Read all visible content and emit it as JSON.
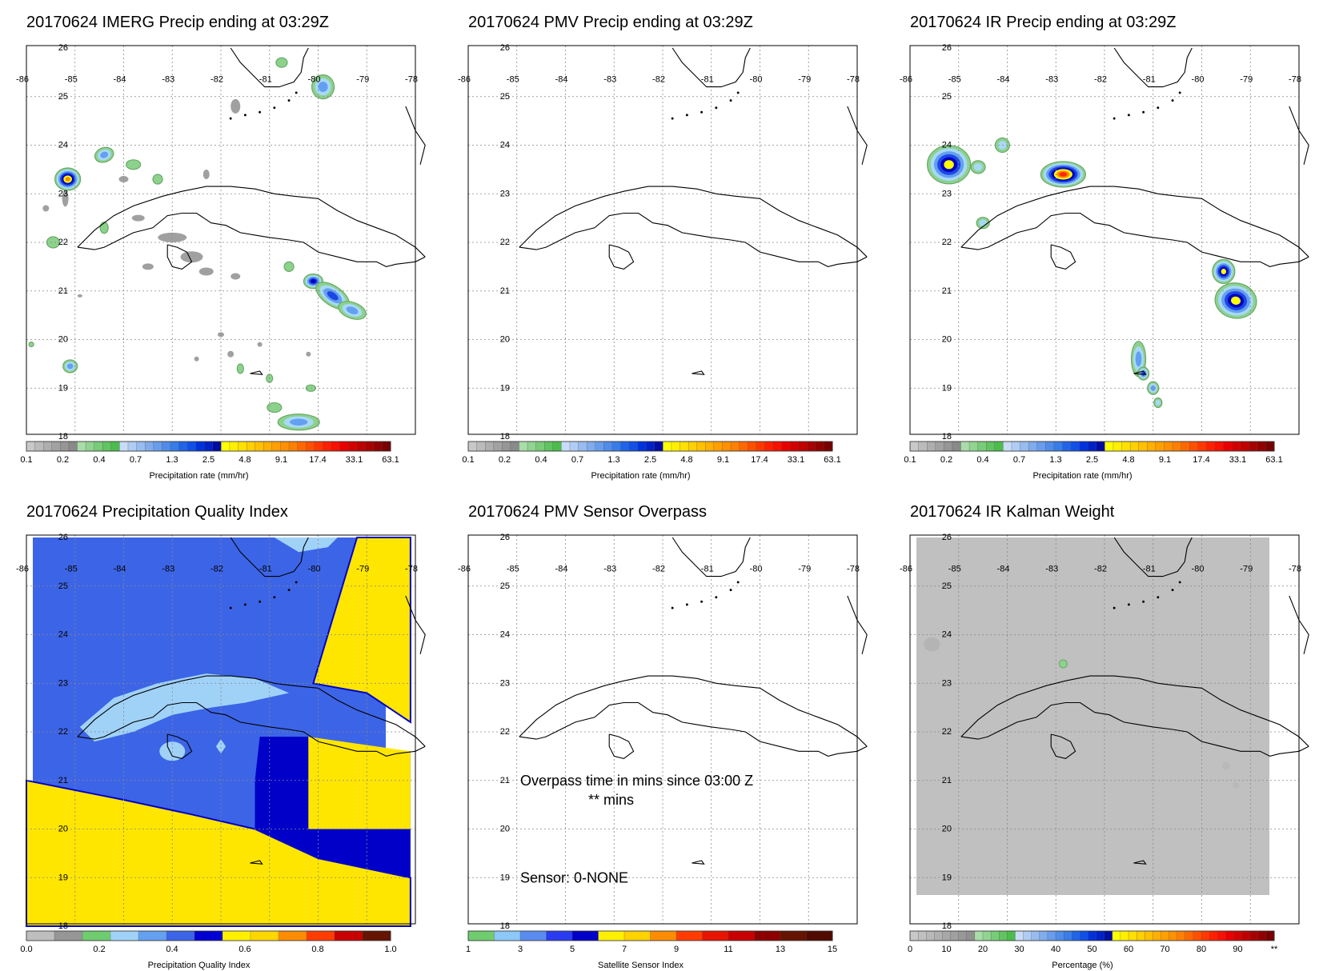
{
  "panels": [
    {
      "title": "20170624 IMERG Precip ending at 03:29Z",
      "kind": "imerg",
      "colorbar": "precip"
    },
    {
      "title": "20170624 PMV Precip ending at 03:29Z",
      "kind": "empty",
      "colorbar": "precip"
    },
    {
      "title": "20170624 IR Precip ending at 03:29Z",
      "kind": "ir",
      "colorbar": "precip"
    },
    {
      "title": "20170624 Precipitation Quality Index",
      "kind": "quality",
      "colorbar": "quality"
    },
    {
      "title": "20170624 PMV Sensor Overpass",
      "kind": "overpass",
      "colorbar": "sensor"
    },
    {
      "title": "20170624 IR Kalman Weight",
      "kind": "kalman",
      "colorbar": "percent"
    }
  ],
  "map": {
    "lon_ticks": [
      "-86",
      "-85",
      "-84",
      "-83",
      "-82",
      "-81",
      "-80",
      "-79",
      "-78"
    ],
    "lat_ticks": [
      "26",
      "25",
      "24",
      "23",
      "22",
      "21",
      "20",
      "19",
      "18"
    ],
    "lon_range": [
      -86,
      -78
    ],
    "lat_range": [
      18,
      26
    ]
  },
  "overpass_annotation": {
    "line1": "Overpass time in mins since 03:00 Z",
    "line2": "** mins",
    "sensor": "Sensor:   0-NONE"
  },
  "colorbars": {
    "precip": {
      "label": "Precipitation rate (mm/hr)",
      "tick_labels": [
        "0.1",
        "0.2",
        "0.4",
        "0.7",
        "1.3",
        "2.5",
        "4.8",
        "9.1",
        "17.4",
        "33.1",
        "63.1"
      ],
      "colors": [
        "#c8c8c8",
        "#bbbbbb",
        "#aeaeae",
        "#a2a2a2",
        "#969696",
        "#8a8a8a",
        "#a8dca8",
        "#90d490",
        "#78cc78",
        "#60c460",
        "#4cbc4c",
        "#c8dcf8",
        "#b0ccf4",
        "#98bcf0",
        "#80acec",
        "#689cec",
        "#508ce8",
        "#387ce8",
        "#2064e8",
        "#1050e8",
        "#0032dc",
        "#0020c8",
        "#000ca0",
        "#ffff00",
        "#fff000",
        "#ffe000",
        "#ffd000",
        "#ffc000",
        "#ffb000",
        "#ffa000",
        "#ff9000",
        "#ff8000",
        "#ff6800",
        "#ff5000",
        "#ff3800",
        "#ff2000",
        "#f81000",
        "#e80000",
        "#d40000",
        "#c00000",
        "#a80000",
        "#900000",
        "#780000"
      ]
    },
    "quality": {
      "label": "Precipitation Quality Index",
      "tick_labels": [
        "0.0",
        "0.2",
        "0.4",
        "0.6",
        "0.8",
        "1.0"
      ],
      "colors": [
        "#bebebe",
        "#969696",
        "#6fcc6f",
        "#a0d2f8",
        "#64a0f0",
        "#3c64e6",
        "#0000d2",
        "#fff000",
        "#ffd700",
        "#ff8c00",
        "#ff3c00",
        "#c80000",
        "#641400"
      ]
    },
    "sensor": {
      "label": "Satellite Sensor Index",
      "tick_labels": [
        "1",
        "3",
        "5",
        "7",
        "9",
        "11",
        "13",
        "15"
      ],
      "colors": [
        "#6fcc6f",
        "#8cc8f8",
        "#5a8cf0",
        "#2a3cf0",
        "#0000c8",
        "#fff000",
        "#ffd200",
        "#ff8c00",
        "#ff3c00",
        "#e61400",
        "#c80000",
        "#8c0000",
        "#641400",
        "#500a00"
      ]
    },
    "percent": {
      "label": "Percentage (%)",
      "tick_labels": [
        "0",
        "10",
        "20",
        "30",
        "40",
        "50",
        "60",
        "70",
        "80",
        "90",
        "**"
      ],
      "colors": [
        "#c8c8c8",
        "#c0c0c0",
        "#b8b8b8",
        "#b0b0b0",
        "#a8a8a8",
        "#a0a0a0",
        "#989898",
        "#909090",
        "#a8dca8",
        "#90d490",
        "#78cc78",
        "#60c460",
        "#4cbc4c",
        "#c8dcf8",
        "#b0ccf4",
        "#98bcf0",
        "#80acec",
        "#689cec",
        "#508ce8",
        "#387ce8",
        "#2064e8",
        "#1050e8",
        "#0032dc",
        "#0020c8",
        "#000ca0",
        "#ffff00",
        "#fff000",
        "#ffe000",
        "#ffd000",
        "#ffc000",
        "#ffb000",
        "#ffa000",
        "#ff9000",
        "#ff8000",
        "#ff6800",
        "#ff5000",
        "#ff3800",
        "#ff2000",
        "#f81000",
        "#e80000",
        "#d40000",
        "#c00000",
        "#a80000",
        "#900000",
        "#780000"
      ]
    }
  },
  "chart_data": [
    {
      "type": "heatmap",
      "title": "20170624 IMERG Precip ending at 03:29Z",
      "variable": "Precipitation rate (mm/hr)",
      "x_range": [
        -86,
        -78
      ],
      "y_range": [
        18,
        26
      ],
      "levels": [
        0.1,
        0.2,
        0.4,
        0.7,
        1.3,
        2.5,
        4.8,
        9.1,
        17.4,
        33.1,
        63.1
      ],
      "features": [
        {
          "lon": -85.1,
          "lat": 23.3,
          "peak_mm_hr": 9.1
        },
        {
          "lon": -80.0,
          "lat": 21.3,
          "peak_mm_hr": 2.5
        },
        {
          "lon": -79.6,
          "lat": 20.7,
          "peak_mm_hr": 1.3
        },
        {
          "lon": -84.4,
          "lat": 23.8,
          "peak_mm_hr": 0.7
        },
        {
          "lon": -79.9,
          "lat": 25.2,
          "peak_mm_hr": 0.7
        },
        {
          "lon": -80.4,
          "lat": 18.2,
          "peak_mm_hr": 0.4
        },
        {
          "lon": -85.2,
          "lat": 19.4,
          "peak_mm_hr": 0.7
        },
        {
          "lon": -83.5,
          "lat": 21.7,
          "peak_mm_hr": 0.2
        }
      ]
    },
    {
      "type": "heatmap",
      "title": "20170624 PMV Precip ending at 03:29Z",
      "variable": "Precipitation rate (mm/hr)",
      "x_range": [
        -86,
        -78
      ],
      "y_range": [
        18,
        26
      ],
      "features": []
    },
    {
      "type": "heatmap",
      "title": "20170624 IR Precip ending at 03:29Z",
      "variable": "Precipitation rate (mm/hr)",
      "x_range": [
        -86,
        -78
      ],
      "y_range": [
        18,
        26
      ],
      "levels": [
        0.1,
        0.2,
        0.4,
        0.7,
        1.3,
        2.5,
        4.8,
        9.1,
        17.4,
        33.1,
        63.1
      ],
      "features": [
        {
          "lon": -85.2,
          "lat": 23.6,
          "peak_mm_hr": 4.8
        },
        {
          "lon": -82.8,
          "lat": 23.4,
          "peak_mm_hr": 17.4
        },
        {
          "lon": -79.2,
          "lat": 20.8,
          "peak_mm_hr": 4.8
        },
        {
          "lon": -79.6,
          "lat": 21.4,
          "peak_mm_hr": 4.8
        },
        {
          "lon": -84.4,
          "lat": 23.9,
          "peak_mm_hr": 0.7
        },
        {
          "lon": -84.6,
          "lat": 23.5,
          "peak_mm_hr": 0.7
        },
        {
          "lon": -84.5,
          "lat": 22.4,
          "peak_mm_hr": 0.4
        },
        {
          "lon": -81.3,
          "lat": 19.5,
          "peak_mm_hr": 1.3
        }
      ]
    },
    {
      "type": "heatmap",
      "title": "20170624 Precipitation Quality Index",
      "variable": "Precipitation Quality Index",
      "x_range": [
        -86,
        -78
      ],
      "y_range": [
        18,
        26
      ],
      "levels": [
        0.0,
        0.2,
        0.4,
        0.6,
        0.8,
        1.0
      ],
      "regions": [
        {
          "value": 0.65,
          "description": "yellow southern region"
        },
        {
          "value": 0.65,
          "description": "yellow northeast region"
        },
        {
          "value": 0.45,
          "description": "blue main region"
        },
        {
          "value": 0.35,
          "description": "light blue over Cuba and Florida Keys"
        },
        {
          "value": 0.55,
          "description": "dark blue south-east region"
        }
      ]
    },
    {
      "type": "heatmap",
      "title": "20170624 PMV Sensor Overpass",
      "variable": "Satellite Sensor Index",
      "x_range": [
        -86,
        -78
      ],
      "y_range": [
        18,
        26
      ],
      "features": []
    },
    {
      "type": "heatmap",
      "title": "20170624 IR Kalman Weight",
      "variable": "Percentage (%)",
      "x_range": [
        -86,
        -78
      ],
      "y_range": [
        18,
        26
      ],
      "levels": [
        0,
        10,
        20,
        30,
        40,
        50,
        60,
        70,
        80,
        90
      ],
      "background_percent": 5,
      "features": [
        {
          "lon": -82.8,
          "lat": 23.4,
          "percent": 20
        },
        {
          "lon": -85.5,
          "lat": 23.8,
          "percent": 8
        }
      ]
    }
  ]
}
